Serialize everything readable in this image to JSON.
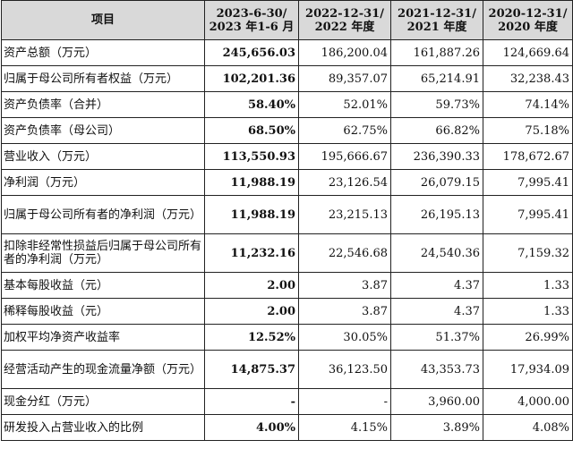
{
  "header": {
    "item": "项目",
    "periods": [
      [
        "2023-6-30/",
        "2023 年1-6 月"
      ],
      [
        "2022-12-31/",
        "2022 年度"
      ],
      [
        "2021-12-31/",
        "2021 年度"
      ],
      [
        "2020-12-31/",
        "2020 年度"
      ]
    ]
  },
  "rows": [
    {
      "label": "资产总额（万元）",
      "values": [
        "245,656.03",
        "186,200.04",
        "161,887.26",
        "124,669.64"
      ],
      "tall": false
    },
    {
      "label": "归属于母公司所有者权益（万元）",
      "values": [
        "102,201.36",
        "89,357.07",
        "65,214.91",
        "32,238.43"
      ],
      "tall": false
    },
    {
      "label": "资产负债率（合并）",
      "values": [
        "58.40%",
        "52.01%",
        "59.73%",
        "74.14%"
      ],
      "tall": false
    },
    {
      "label": "资产负债率（母公司）",
      "values": [
        "68.50%",
        "62.75%",
        "66.82%",
        "75.18%"
      ],
      "tall": false
    },
    {
      "label": "营业收入（万元）",
      "values": [
        "113,550.93",
        "195,666.67",
        "236,390.33",
        "178,672.67"
      ],
      "tall": false
    },
    {
      "label": "净利润（万元）",
      "values": [
        "11,988.19",
        "23,126.54",
        "26,079.15",
        "7,995.41"
      ],
      "tall": false
    },
    {
      "label": "归属于母公司所有者的净利润（万元）",
      "values": [
        "11,988.19",
        "23,215.13",
        "26,195.13",
        "7,995.41"
      ],
      "tall": true
    },
    {
      "label": "扣除非经常性损益后归属于母公司所有者的净利润（万元）",
      "values": [
        "11,232.16",
        "22,546.68",
        "24,540.36",
        "7,159.32"
      ],
      "tall": true
    },
    {
      "label": "基本每股收益（元）",
      "values": [
        "2.00",
        "3.87",
        "4.37",
        "1.33"
      ],
      "tall": false
    },
    {
      "label": "稀释每股收益（元）",
      "values": [
        "2.00",
        "3.87",
        "4.37",
        "1.33"
      ],
      "tall": false
    },
    {
      "label": "加权平均净资产收益率",
      "values": [
        "12.52%",
        "30.05%",
        "51.37%",
        "26.99%"
      ],
      "tall": false
    },
    {
      "label": "经营活动产生的现金流量净额（万元）",
      "values": [
        "14,875.37",
        "36,123.50",
        "43,353.73",
        "17,934.09"
      ],
      "tall": true
    },
    {
      "label": "现金分红（万元）",
      "values": [
        "-",
        "-",
        "3,960.00",
        "4,000.00"
      ],
      "tall": false
    },
    {
      "label": "研发投入占营业收入的比例",
      "values": [
        "4.00%",
        "4.15%",
        "3.89%",
        "4.08%"
      ],
      "tall": false
    }
  ]
}
